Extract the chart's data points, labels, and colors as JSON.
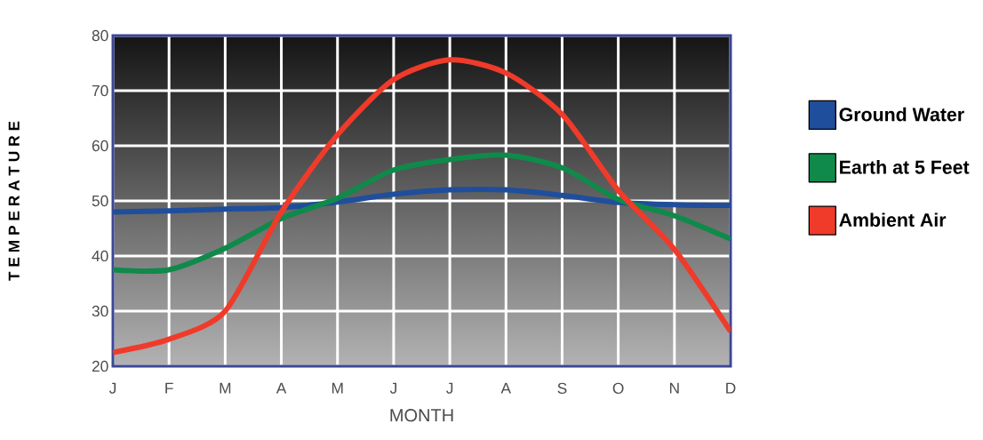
{
  "chart_data": {
    "type": "line",
    "xlabel": "MONTH",
    "ylabel": "T E M P E R A T U R E",
    "categories": [
      "J",
      "F",
      "M",
      "A",
      "M",
      "J",
      "J",
      "A",
      "S",
      "O",
      "N",
      "D"
    ],
    "series": [
      {
        "name": "Ground Water",
        "color": "#1f4e9c",
        "values": [
          48,
          48.2,
          48.5,
          48.8,
          49.8,
          51.2,
          52,
          52,
          51,
          49.7,
          49.3,
          49.2
        ]
      },
      {
        "name": "Earth at 5 Feet",
        "color": "#0f8a4a",
        "values": [
          37.5,
          37.5,
          41.4,
          46.8,
          50.5,
          55.6,
          57.5,
          58.3,
          56,
          50.3,
          47.3,
          43.1
        ]
      },
      {
        "name": "Ambient Air",
        "color": "#f03a2a",
        "values": [
          22.5,
          24.9,
          30,
          48,
          62,
          72,
          75.6,
          73.2,
          65.7,
          51.9,
          41.2,
          26.3
        ]
      }
    ],
    "ylim": [
      20,
      80
    ],
    "yticks": [
      20,
      30,
      40,
      50,
      60,
      70,
      80
    ],
    "grid": true,
    "legend": "right",
    "marker": "none",
    "line_style": "solid"
  }
}
